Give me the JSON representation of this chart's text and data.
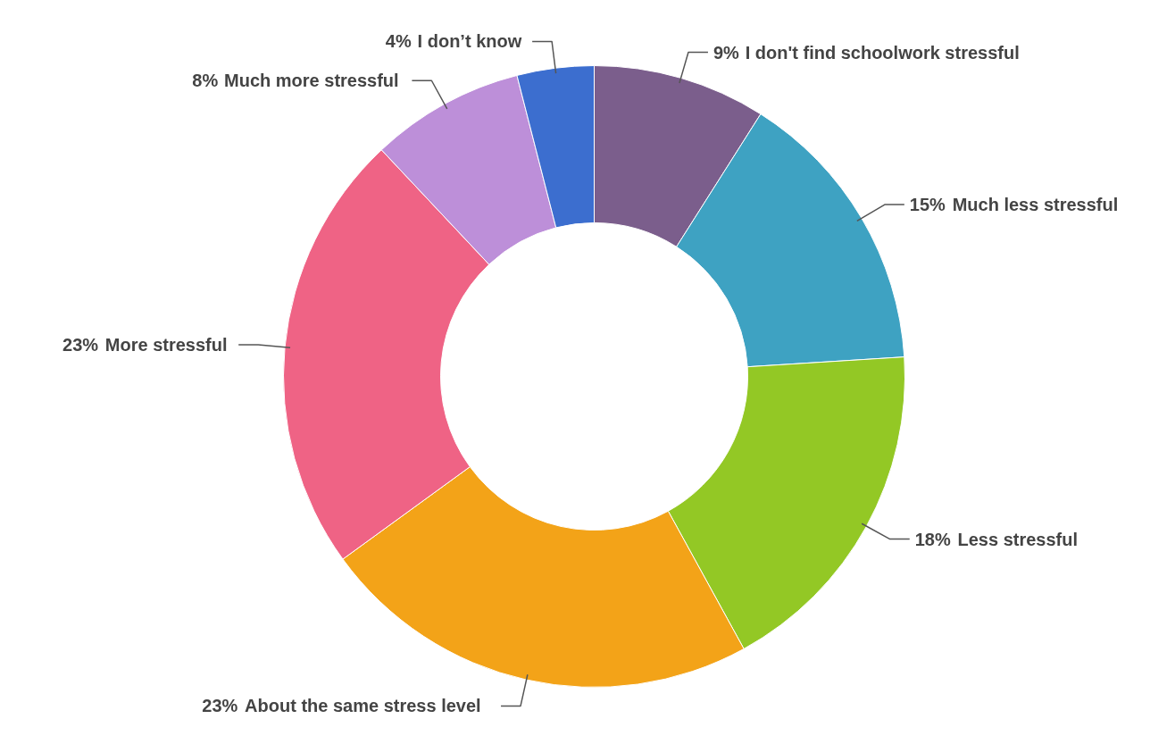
{
  "chart_data": {
    "type": "donut",
    "categories": [
      "I don't find schoolwork stressful",
      "Much less stressful",
      "Less stressful",
      "About the same stress level",
      "More stressful",
      "Much more stressful",
      "I don’t know"
    ],
    "values": [
      9,
      15,
      18,
      23,
      23,
      8,
      4
    ],
    "colors": [
      "#7b5e8c",
      "#3ea2c2",
      "#93c825",
      "#f3a318",
      "#ef6385",
      "#bd8fd9",
      "#3c6ecf"
    ],
    "value_labels": [
      "9%",
      "15%",
      "18%",
      "23%",
      "23%",
      "8%",
      "4%"
    ]
  }
}
